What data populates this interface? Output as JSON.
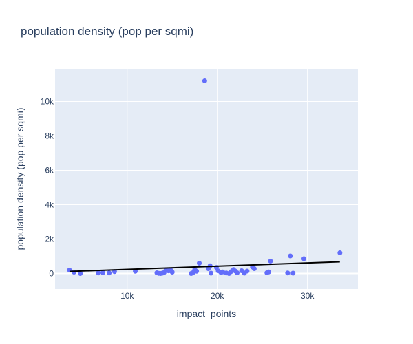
{
  "chart_data": {
    "type": "scatter",
    "title": "population density (pop per sqmi)",
    "xlabel": "impact_points",
    "ylabel": "population density (pop per sqmi)",
    "xlim": [
      2000,
      35600
    ],
    "ylim": [
      -900,
      11900
    ],
    "x_ticks": [
      10000,
      20000,
      30000
    ],
    "x_tick_labels": [
      "10k",
      "20k",
      "30k"
    ],
    "y_ticks": [
      0,
      2000,
      4000,
      6000,
      8000,
      10000
    ],
    "y_tick_labels": [
      "0",
      "2k",
      "4k",
      "6k",
      "8k",
      "10k"
    ],
    "grid": true,
    "colors": {
      "plot_bg": "#E5ECF6",
      "marker": "#636EFA",
      "trend": "#000000",
      "grid": "#ffffff"
    },
    "points": [
      {
        "x": 3600,
        "y": 200
      },
      {
        "x": 4100,
        "y": 80
      },
      {
        "x": 4800,
        "y": 0
      },
      {
        "x": 6800,
        "y": 30
      },
      {
        "x": 7300,
        "y": 50
      },
      {
        "x": 8000,
        "y": 30
      },
      {
        "x": 8600,
        "y": 110
      },
      {
        "x": 10900,
        "y": 130
      },
      {
        "x": 13300,
        "y": 40
      },
      {
        "x": 13500,
        "y": 10
      },
      {
        "x": 13700,
        "y": 0
      },
      {
        "x": 13900,
        "y": 20
      },
      {
        "x": 14100,
        "y": 60
      },
      {
        "x": 14300,
        "y": 200
      },
      {
        "x": 14600,
        "y": 150
      },
      {
        "x": 14800,
        "y": 220
      },
      {
        "x": 15000,
        "y": 80
      },
      {
        "x": 17100,
        "y": 0
      },
      {
        "x": 17300,
        "y": 50
      },
      {
        "x": 17500,
        "y": 230
      },
      {
        "x": 17700,
        "y": 130
      },
      {
        "x": 18000,
        "y": 600
      },
      {
        "x": 18600,
        "y": 11200
      },
      {
        "x": 19000,
        "y": 280
      },
      {
        "x": 19200,
        "y": 450
      },
      {
        "x": 19300,
        "y": 20
      },
      {
        "x": 19900,
        "y": 350
      },
      {
        "x": 20100,
        "y": 150
      },
      {
        "x": 20400,
        "y": 60
      },
      {
        "x": 20600,
        "y": 90
      },
      {
        "x": 21000,
        "y": 30
      },
      {
        "x": 21300,
        "y": 0
      },
      {
        "x": 21500,
        "y": 100
      },
      {
        "x": 21800,
        "y": 230
      },
      {
        "x": 22000,
        "y": 140
      },
      {
        "x": 22200,
        "y": 40
      },
      {
        "x": 22700,
        "y": 160
      },
      {
        "x": 23000,
        "y": 20
      },
      {
        "x": 23300,
        "y": 140
      },
      {
        "x": 23900,
        "y": 380
      },
      {
        "x": 24100,
        "y": 280
      },
      {
        "x": 25500,
        "y": 40
      },
      {
        "x": 25700,
        "y": 90
      },
      {
        "x": 25900,
        "y": 720
      },
      {
        "x": 27800,
        "y": 30
      },
      {
        "x": 28100,
        "y": 1020
      },
      {
        "x": 28400,
        "y": 20
      },
      {
        "x": 29600,
        "y": 860
      },
      {
        "x": 33600,
        "y": 1200
      }
    ],
    "trendline": {
      "x": [
        3600,
        33600
      ],
      "y": [
        120,
        680
      ]
    }
  }
}
